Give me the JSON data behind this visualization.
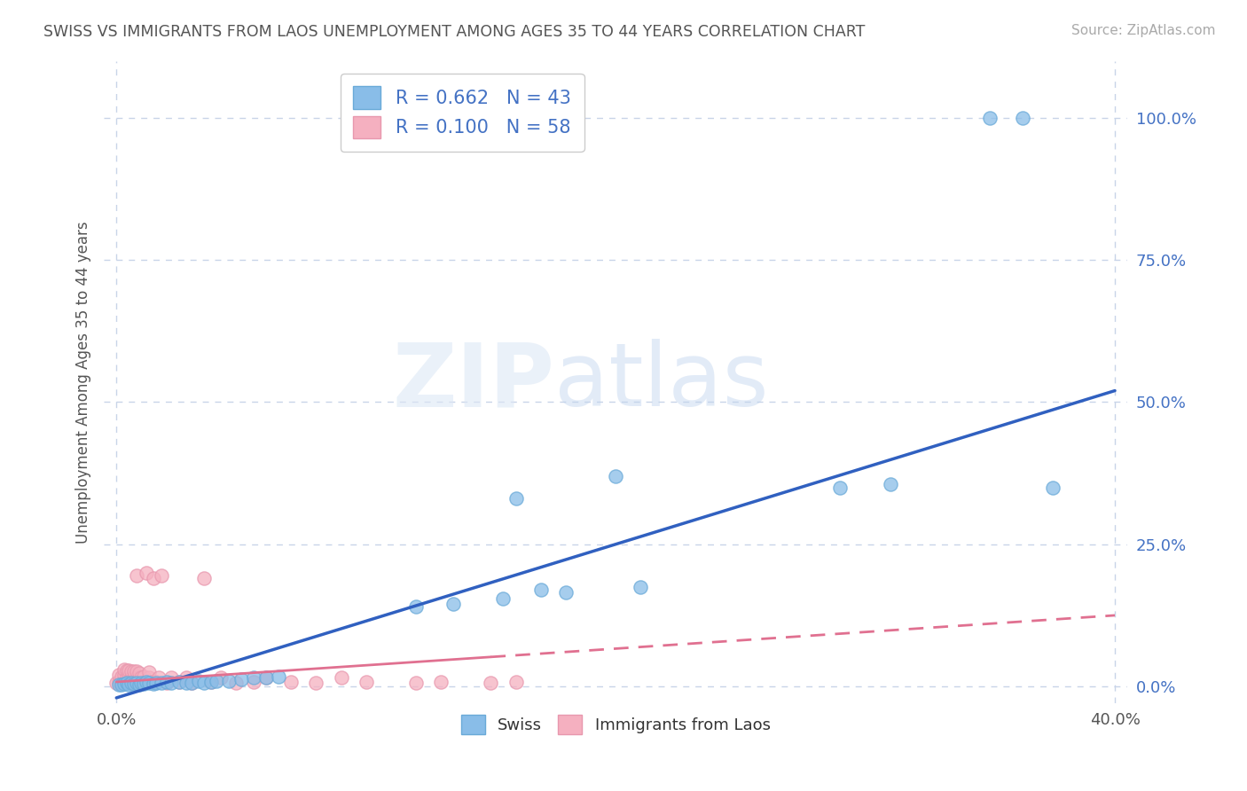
{
  "title": "SWISS VS IMMIGRANTS FROM LAOS UNEMPLOYMENT AMONG AGES 35 TO 44 YEARS CORRELATION CHART",
  "source": "Source: ZipAtlas.com",
  "xlabel": "",
  "ylabel": "Unemployment Among Ages 35 to 44 years",
  "xlim": [
    -0.005,
    0.405
  ],
  "ylim": [
    -0.03,
    1.1
  ],
  "xticks": [
    0.0,
    0.4
  ],
  "xticklabels": [
    "0.0%",
    "40.0%"
  ],
  "ytick_positions": [
    0.0,
    0.25,
    0.5,
    0.75,
    1.0
  ],
  "ytick_labels": [
    "0.0%",
    "25.0%",
    "50.0%",
    "75.0%",
    "100.0%"
  ],
  "background_color": "#ffffff",
  "grid_color": "#c8d4e8",
  "swiss_color": "#89bde8",
  "swiss_edge_color": "#6aaad8",
  "laos_color": "#f5b0c0",
  "laos_edge_color": "#e898ae",
  "swiss_line_color": "#3060c0",
  "laos_line_color": "#e07090",
  "swiss_R": 0.662,
  "swiss_N": 43,
  "laos_R": 0.1,
  "laos_N": 58,
  "legend_label_swiss": "Swiss",
  "legend_label_laos": "Immigrants from Laos",
  "watermark_zip": "ZIP",
  "watermark_atlas": "atlas",
  "swiss_trend_x0": 0.0,
  "swiss_trend_y0": -0.02,
  "swiss_trend_x1": 0.4,
  "swiss_trend_y1": 0.52,
  "laos_trend_x0": 0.0,
  "laos_trend_y0": 0.008,
  "laos_trend_x1": 0.4,
  "laos_trend_y1": 0.125,
  "swiss_x": [
    0.001,
    0.002,
    0.003,
    0.004,
    0.005,
    0.006,
    0.007,
    0.008,
    0.009,
    0.01,
    0.011,
    0.012,
    0.013,
    0.015,
    0.016,
    0.018,
    0.02,
    0.022,
    0.025,
    0.028,
    0.03,
    0.033,
    0.035,
    0.038,
    0.04,
    0.045,
    0.05,
    0.055,
    0.06,
    0.065,
    0.12,
    0.135,
    0.155,
    0.16,
    0.17,
    0.18,
    0.2,
    0.21,
    0.29,
    0.31,
    0.35,
    0.363,
    0.375
  ],
  "swiss_y": [
    0.004,
    0.003,
    0.005,
    0.006,
    0.004,
    0.007,
    0.005,
    0.006,
    0.004,
    0.007,
    0.005,
    0.008,
    0.006,
    0.005,
    0.007,
    0.006,
    0.008,
    0.007,
    0.008,
    0.007,
    0.007,
    0.009,
    0.006,
    0.008,
    0.01,
    0.009,
    0.013,
    0.015,
    0.015,
    0.018,
    0.14,
    0.145,
    0.155,
    0.33,
    0.17,
    0.165,
    0.37,
    0.175,
    0.35,
    0.355,
    1.0,
    1.0,
    0.35
  ],
  "laos_x": [
    0.0,
    0.001,
    0.001,
    0.002,
    0.002,
    0.003,
    0.003,
    0.003,
    0.004,
    0.004,
    0.004,
    0.005,
    0.005,
    0.005,
    0.006,
    0.006,
    0.006,
    0.007,
    0.007,
    0.007,
    0.008,
    0.008,
    0.008,
    0.009,
    0.009,
    0.009,
    0.01,
    0.01,
    0.011,
    0.011,
    0.012,
    0.012,
    0.013,
    0.013,
    0.014,
    0.015,
    0.016,
    0.017,
    0.018,
    0.02,
    0.022,
    0.025,
    0.028,
    0.03,
    0.035,
    0.038,
    0.042,
    0.048,
    0.055,
    0.06,
    0.07,
    0.08,
    0.09,
    0.1,
    0.12,
    0.13,
    0.15,
    0.16
  ],
  "laos_y": [
    0.006,
    0.008,
    0.02,
    0.006,
    0.018,
    0.01,
    0.02,
    0.03,
    0.008,
    0.018,
    0.028,
    0.008,
    0.018,
    0.028,
    0.007,
    0.016,
    0.026,
    0.008,
    0.018,
    0.026,
    0.195,
    0.016,
    0.026,
    0.008,
    0.016,
    0.024,
    0.007,
    0.016,
    0.008,
    0.018,
    0.2,
    0.008,
    0.016,
    0.025,
    0.008,
    0.19,
    0.008,
    0.016,
    0.195,
    0.007,
    0.016,
    0.008,
    0.016,
    0.007,
    0.19,
    0.008,
    0.016,
    0.007,
    0.008,
    0.016,
    0.008,
    0.007,
    0.016,
    0.008,
    0.007,
    0.008,
    0.007,
    0.008
  ]
}
